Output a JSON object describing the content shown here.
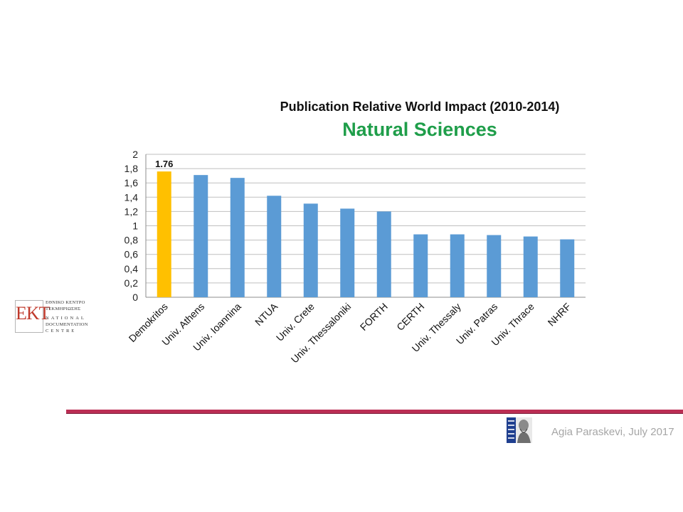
{
  "chart_data": {
    "type": "bar",
    "title": "Publication Relative World Impact (2010-2014)",
    "subtitle": "Natural Sciences",
    "categories": [
      "Demokritos",
      "Univ. Athens",
      "Univ. Ioannina",
      "NTUA",
      "Univ. Crete",
      "Univ. Thessaloniki",
      "FORTH",
      "CERTH",
      "Univ. Thessaly",
      "Univ. Patras",
      "Univ. Thrace",
      "NHRF"
    ],
    "values": [
      1.76,
      1.71,
      1.67,
      1.42,
      1.31,
      1.24,
      1.2,
      0.88,
      0.88,
      0.87,
      0.85,
      0.81
    ],
    "highlight_index": 0,
    "data_labels": [
      {
        "index": 0,
        "text": "1.76"
      }
    ],
    "ylim": [
      0,
      2
    ],
    "yticks": [
      "0",
      "0,2",
      "0,4",
      "0,6",
      "0,8",
      "1",
      "1,2",
      "1,4",
      "1,6",
      "1,8",
      "2"
    ],
    "grid": true,
    "colors": {
      "bar": "#5b9bd5",
      "highlight": "#ffc000",
      "grid": "#bfbfbf",
      "subtitle": "#1f9e4a"
    }
  },
  "logo": {
    "letters": "EKT",
    "line1": "ΕΘΝΙΚΟ ΚΕΝΤΡΟ",
    "line2": "ΤΕΚΜΗΡΙΩΣΗΣ",
    "line3": "NATIONAL",
    "line4": "DOCUMENTATION",
    "line5": "CENTRE"
  },
  "footer": {
    "text": "Agia Paraskevi, July 2017",
    "bar_color": "#bb2e54"
  }
}
